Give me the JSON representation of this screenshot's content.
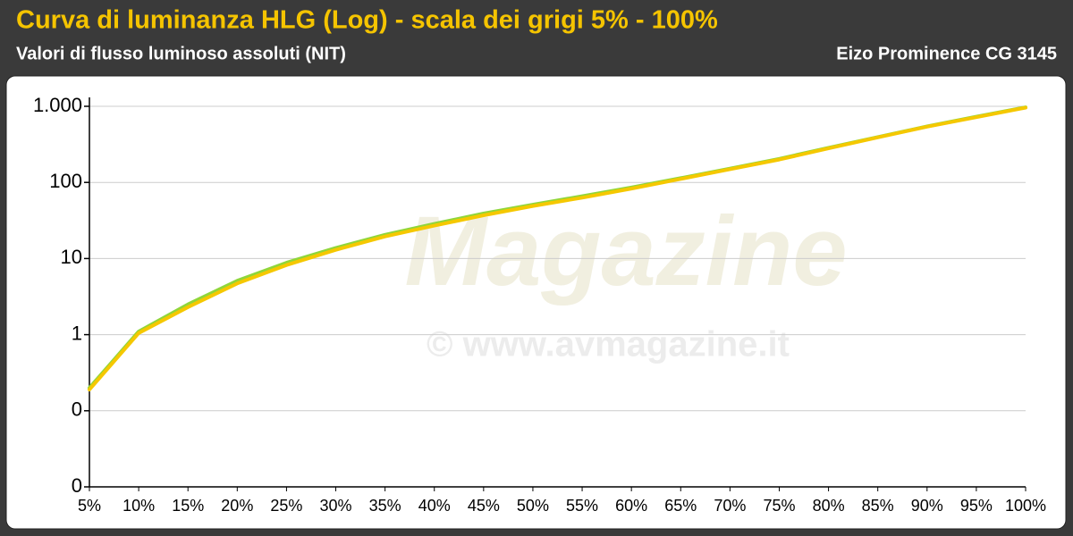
{
  "chart_data": {
    "type": "line",
    "title": "Curva di luminanza HLG (Log) - scala dei grigi 5% - 100%",
    "subtitle": "Valori di flusso luminoso assoluti (NIT)",
    "subtitle_right": "Eizo Prominence CG 3145",
    "watermark": [
      "Magazine",
      "© www.avmagazine.it"
    ],
    "categories": [
      "5%",
      "10%",
      "15%",
      "20%",
      "25%",
      "30%",
      "35%",
      "40%",
      "45%",
      "50%",
      "55%",
      "60%",
      "65%",
      "70%",
      "75%",
      "80%",
      "85%",
      "90%",
      "95%",
      "100%"
    ],
    "series": [
      {
        "color": "#8fd63a",
        "values": [
          0.2,
          1.1,
          2.5,
          5.1,
          8.8,
          13.8,
          20.5,
          28.5,
          39,
          51,
          66,
          86,
          114,
          152,
          204,
          285,
          395,
          545,
          730,
          970
        ]
      },
      {
        "color": "#f5c800",
        "values": [
          0.19,
          1.05,
          2.3,
          4.7,
          8.2,
          13,
          19.5,
          27,
          37,
          49,
          63,
          83,
          111,
          149,
          200,
          280,
          390,
          540,
          720,
          960
        ]
      }
    ],
    "log_scale": true,
    "ylim": [
      0.01,
      1000
    ],
    "yticks": [
      {
        "value": 0.01,
        "label": "0"
      },
      {
        "value": 0.1,
        "label": "0"
      },
      1,
      10,
      100,
      {
        "value": 1000,
        "label": "1.000"
      }
    ],
    "grid": true
  }
}
